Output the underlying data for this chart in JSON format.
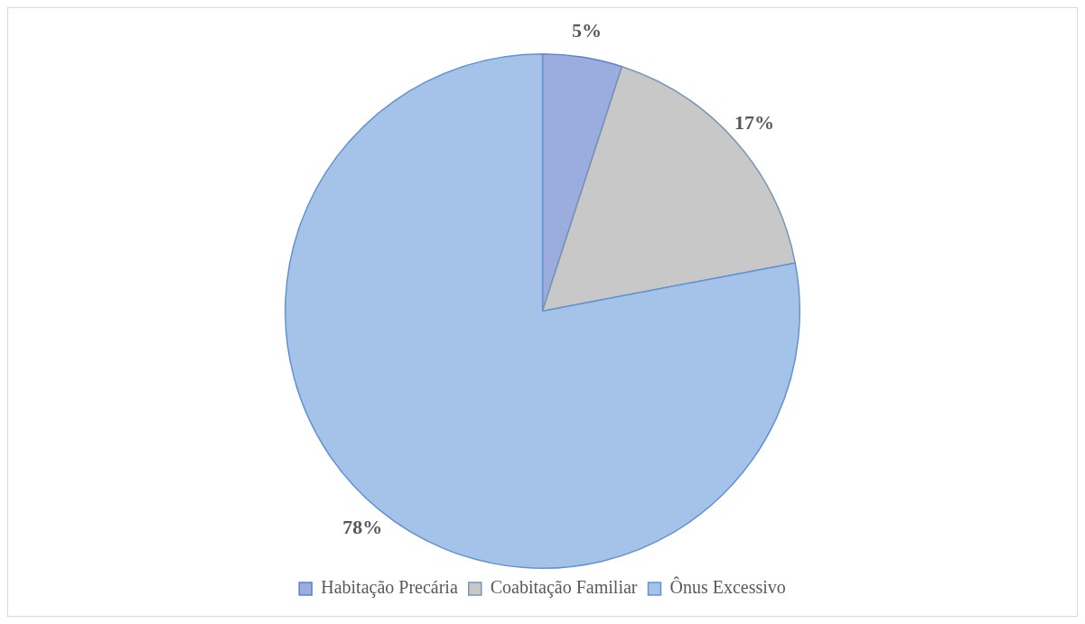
{
  "chart_data": {
    "type": "pie",
    "categories": [
      "Habitação Precária",
      "Coabitação Familiar",
      "Ônus Excessivo"
    ],
    "values": [
      5,
      17,
      78
    ],
    "colors": [
      "#9badde",
      "#c8c8c8",
      "#a5c3e8"
    ],
    "value_labels": [
      "5%",
      "17%",
      "78%"
    ],
    "legend": "bottom"
  }
}
